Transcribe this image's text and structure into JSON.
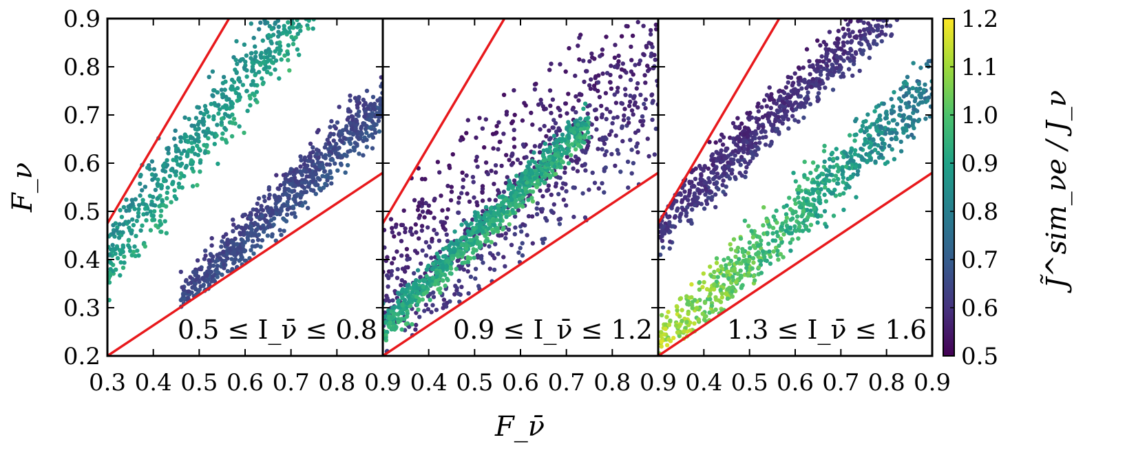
{
  "chart_data": {
    "type": "scatter",
    "xlabel": "F_ν̄",
    "ylabel": "F_ν",
    "colorbar_label": "J̃^sim_νe / J_ν",
    "colormap": "viridis",
    "colorbar": {
      "range": [
        0.5,
        1.2
      ],
      "ticks": [
        "0.5",
        "0.6",
        "0.7",
        "0.8",
        "0.9",
        "1.0",
        "1.1",
        "1.2"
      ]
    },
    "xlim": [
      0.3,
      0.9
    ],
    "ylim": [
      0.2,
      0.9
    ],
    "x_ticks": [
      "0.3",
      "0.4",
      "0.5",
      "0.6",
      "0.7",
      "0.8",
      "0.9"
    ],
    "y_ticks": [
      "0.2",
      "0.3",
      "0.4",
      "0.5",
      "0.6",
      "0.7",
      "0.8",
      "0.9"
    ],
    "boundary_color": "#e8191c",
    "panels": [
      {
        "annotation": "0.5  ≤ I_ν̄ ≤  0.8",
        "upper_line": [
          [
            0.3,
            0.475
          ],
          [
            0.565,
            0.9
          ]
        ],
        "lower_line": [
          [
            0.3,
            0.2
          ],
          [
            0.9,
            0.58
          ]
        ],
        "clusters": [
          {
            "name": "upper band",
            "x_range": [
              0.3,
              0.9
            ],
            "y_center_at_x_min": 0.4,
            "slope": 1.25,
            "y_spread": 0.13,
            "color_value_range": [
              0.75,
              0.98
            ]
          },
          {
            "name": "lower band",
            "x_range": [
              0.46,
              0.9
            ],
            "y_center_at_x_min": 0.31,
            "slope": 0.95,
            "y_spread": 0.09,
            "color_value_range": [
              0.58,
              0.72
            ]
          }
        ]
      },
      {
        "annotation": "0.9  ≤ I_ν̄ ≤  1.2",
        "upper_line": [
          [
            0.3,
            0.475
          ],
          [
            0.565,
            0.9
          ]
        ],
        "lower_line": [
          [
            0.3,
            0.2
          ],
          [
            0.9,
            0.58
          ]
        ],
        "clusters": [
          {
            "name": "dense fill",
            "x_range": [
              0.3,
              0.9
            ],
            "y_center_at_x_min": 0.33,
            "slope": 0.75,
            "y_spread": 0.28,
            "color_value_range": [
              0.5,
              0.66
            ]
          },
          {
            "name": "diagonal streak",
            "x_range": [
              0.3,
              0.75
            ],
            "y_center_at_x_min": 0.26,
            "slope": 0.95,
            "y_spread": 0.06,
            "color_value_range": [
              0.8,
              1.02
            ]
          }
        ]
      },
      {
        "annotation": "1.3  ≤ I_ν̄ ≤  1.6",
        "upper_line": [
          [
            0.3,
            0.475
          ],
          [
            0.565,
            0.9
          ]
        ],
        "lower_line": [
          [
            0.3,
            0.2
          ],
          [
            0.9,
            0.58
          ]
        ],
        "clusters": [
          {
            "name": "upper band",
            "x_range": [
              0.3,
              0.85
            ],
            "y_center_at_x_min": 0.47,
            "slope": 0.9,
            "y_spread": 0.09,
            "color_value_range": [
              0.52,
              0.66
            ]
          },
          {
            "name": "lower band",
            "x_range": [
              0.3,
              0.9
            ],
            "y_center_at_x_min": 0.22,
            "slope": 0.9,
            "y_spread": 0.1,
            "color_value_range": [
              0.7,
              1.15
            ]
          }
        ]
      }
    ]
  }
}
